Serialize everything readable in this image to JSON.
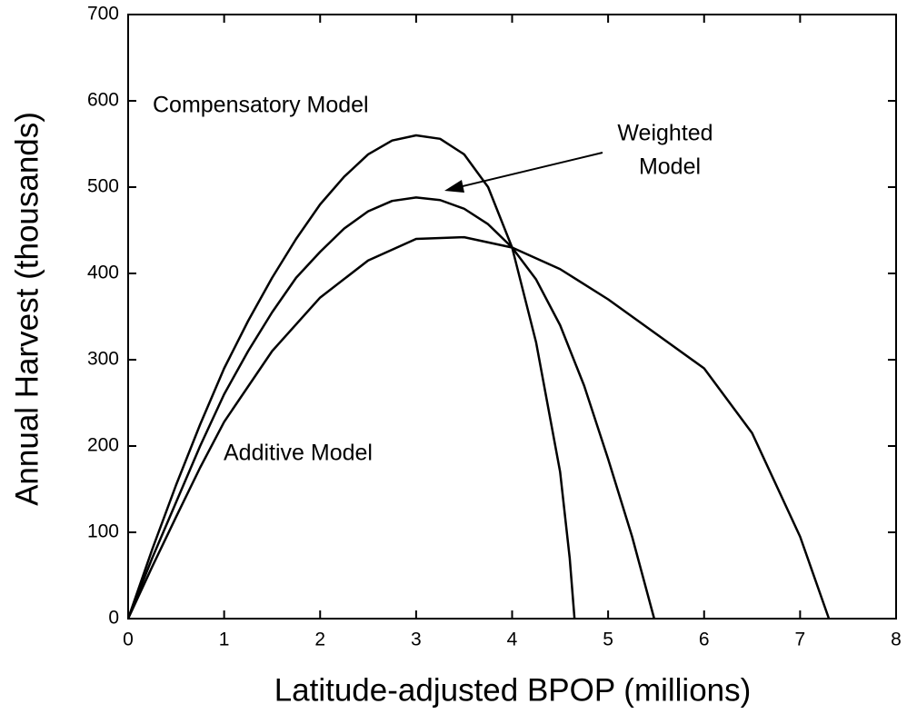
{
  "chart_data": {
    "type": "line",
    "xlabel": "Latitude-adjusted BPOP (millions)",
    "ylabel": "Annual Harvest (thousands)",
    "xlim": [
      0,
      8
    ],
    "xticks": [
      0,
      1,
      2,
      3,
      4,
      5,
      6,
      7,
      8
    ],
    "ylim": [
      0,
      700
    ],
    "yticks": [
      0,
      100,
      200,
      300,
      400,
      500,
      600,
      700
    ],
    "series": [
      {
        "color": "#000000",
        "x": [
          0,
          0.25,
          0.5,
          0.75,
          1,
          1.25,
          1.5,
          1.75,
          2,
          2.25,
          2.5,
          2.75,
          3,
          3.25,
          3.5,
          3.75,
          4,
          4.25,
          4.5,
          4.6,
          4.65
        ],
        "values": [
          0,
          80,
          155,
          225,
          290,
          345,
          395,
          440,
          480,
          512,
          538,
          554,
          560,
          556,
          538,
          500,
          430,
          320,
          170,
          70,
          0
        ]
      },
      {
        "color": "#000000",
        "x": [
          0,
          0.25,
          0.5,
          0.75,
          1,
          1.25,
          1.5,
          1.75,
          2,
          2.25,
          2.5,
          2.75,
          3,
          3.25,
          3.5,
          3.75,
          4,
          4.25,
          4.5,
          4.75,
          5,
          5.25,
          5.48
        ],
        "values": [
          0,
          70,
          135,
          200,
          260,
          310,
          355,
          395,
          425,
          452,
          472,
          484,
          488,
          485,
          475,
          457,
          430,
          393,
          340,
          270,
          185,
          95,
          0
        ]
      },
      {
        "color": "#000000",
        "x": [
          0,
          0.25,
          0.5,
          0.75,
          1,
          1.5,
          2,
          2.5,
          3,
          3.5,
          4,
          4.5,
          5,
          5.5,
          6,
          6.5,
          7,
          7.3
        ],
        "values": [
          0,
          60,
          118,
          175,
          228,
          310,
          372,
          415,
          440,
          442,
          430,
          405,
          370,
          330,
          290,
          215,
          95,
          0
        ]
      }
    ],
    "annotations": [
      {
        "lines": [
          "Compensatory Model"
        ]
      },
      {
        "lines": [
          "Weighted",
          "Model"
        ]
      },
      {
        "lines": [
          "Additive Model"
        ]
      }
    ]
  }
}
